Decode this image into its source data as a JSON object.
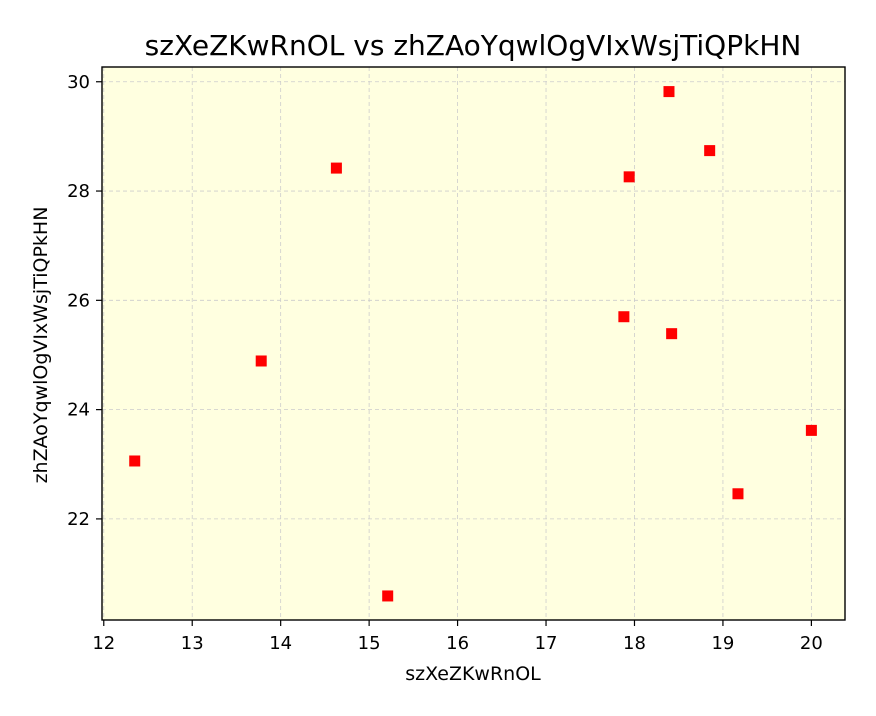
{
  "chart_data": {
    "type": "scatter",
    "title": "szXeZKwRnOL vs zhZAoYqwlOgVIxWsjTiQPkHN",
    "xlabel": "szXeZKwRnOL",
    "ylabel": "zhZAoYqwlOgVIxWsjTiQPkHN",
    "xlim": [
      11.98,
      20.38
    ],
    "ylim": [
      20.15,
      30.27
    ],
    "xticks": [
      12,
      13,
      14,
      15,
      16,
      17,
      18,
      19,
      20
    ],
    "yticks": [
      22,
      24,
      26,
      28,
      30
    ],
    "grid": true,
    "legend": "none",
    "colors": {
      "plot_background": "#ffffe0",
      "marker": "#ff0000",
      "grid": "#cccccc"
    },
    "series": [
      {
        "marker": "square",
        "points": [
          {
            "x": 12.35,
            "y": 23.06
          },
          {
            "x": 13.78,
            "y": 24.89
          },
          {
            "x": 14.63,
            "y": 28.42
          },
          {
            "x": 15.21,
            "y": 20.59
          },
          {
            "x": 17.88,
            "y": 25.7
          },
          {
            "x": 17.94,
            "y": 28.26
          },
          {
            "x": 18.39,
            "y": 29.82
          },
          {
            "x": 18.42,
            "y": 25.39
          },
          {
            "x": 18.85,
            "y": 28.74
          },
          {
            "x": 19.17,
            "y": 22.46
          },
          {
            "x": 20.0,
            "y": 23.62
          }
        ]
      }
    ]
  }
}
